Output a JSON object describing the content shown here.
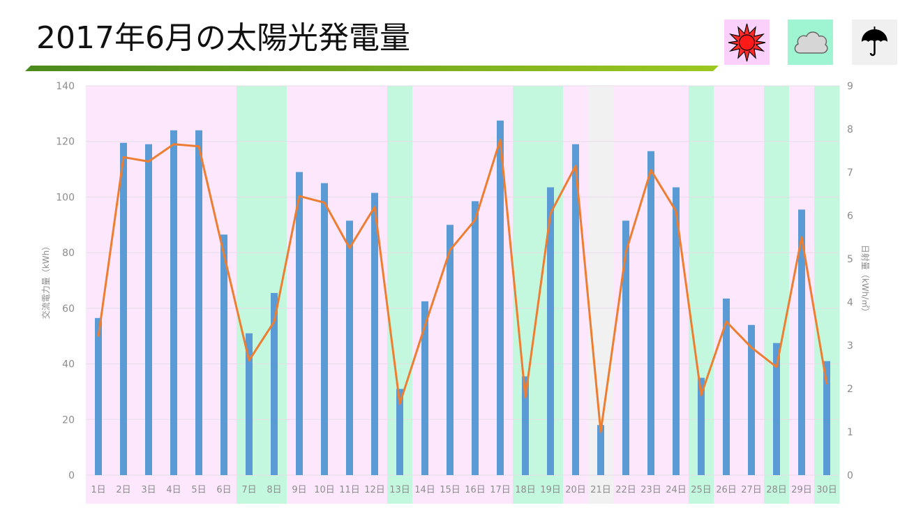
{
  "title": "2017年6月の太陽光発電量",
  "legend": [
    {
      "weather": "sunny",
      "icon": "sun-icon",
      "color": "#fbd0fb"
    },
    {
      "weather": "cloudy",
      "icon": "cloud-icon",
      "color": "#9ff5d2"
    },
    {
      "weather": "rainy",
      "icon": "umbrella-icon",
      "color": "#f0f0f0"
    }
  ],
  "colors": {
    "sunny_band": "#fce7fc",
    "cloudy_band": "#c4f8de",
    "rainy_band": "#f1f1f1",
    "bar": "#5b9bd5",
    "line": "#ed7d31",
    "rule_start": "#4a8a1c",
    "rule_end": "#9cc820"
  },
  "chart_data": {
    "type": "bar",
    "categories": [
      "1日",
      "2日",
      "3日",
      "4日",
      "5日",
      "6日",
      "7日",
      "8日",
      "9日",
      "10日",
      "11日",
      "12日",
      "13日",
      "14日",
      "15日",
      "16日",
      "17日",
      "18日",
      "19日",
      "20日",
      "21日",
      "22日",
      "23日",
      "24日",
      "25日",
      "26日",
      "27日",
      "28日",
      "29日",
      "30日"
    ],
    "weather": [
      "sunny",
      "sunny",
      "sunny",
      "sunny",
      "sunny",
      "sunny",
      "cloudy",
      "cloudy",
      "sunny",
      "sunny",
      "sunny",
      "sunny",
      "cloudy",
      "sunny",
      "sunny",
      "sunny",
      "sunny",
      "cloudy",
      "cloudy",
      "sunny",
      "rainy",
      "sunny",
      "sunny",
      "sunny",
      "cloudy",
      "sunny",
      "sunny",
      "cloudy",
      "sunny",
      "cloudy"
    ],
    "series": [
      {
        "type": "bar",
        "axis": "left",
        "values": [
          56.5,
          119.5,
          119,
          124,
          124,
          86.5,
          51,
          65.5,
          109,
          105,
          91.5,
          101.5,
          31,
          62.5,
          90,
          98.5,
          127.5,
          35.5,
          103.5,
          119,
          18,
          91.5,
          116.5,
          103.5,
          35,
          63.5,
          54,
          47.5,
          95.5,
          41
        ]
      },
      {
        "type": "line",
        "axis": "right",
        "values": [
          3.2,
          7.35,
          7.25,
          7.65,
          7.6,
          5.1,
          2.65,
          3.55,
          6.45,
          6.3,
          5.25,
          6.2,
          1.65,
          3.45,
          5.2,
          5.9,
          7.75,
          1.8,
          6.05,
          7.15,
          1.0,
          5.15,
          7.05,
          6.1,
          1.85,
          3.55,
          2.95,
          2.5,
          5.5,
          2.1
        ]
      }
    ],
    "ylabel": "交流電力量（kWh）",
    "y2label": "日射量（kWh/㎡）",
    "ylim": [
      0,
      140
    ],
    "yticks": [
      0,
      20,
      40,
      60,
      80,
      100,
      120,
      140
    ],
    "y2lim": [
      0,
      9
    ],
    "y2ticks": [
      0,
      1,
      2,
      3,
      4,
      5,
      6,
      7,
      8,
      9
    ],
    "grid": true
  }
}
